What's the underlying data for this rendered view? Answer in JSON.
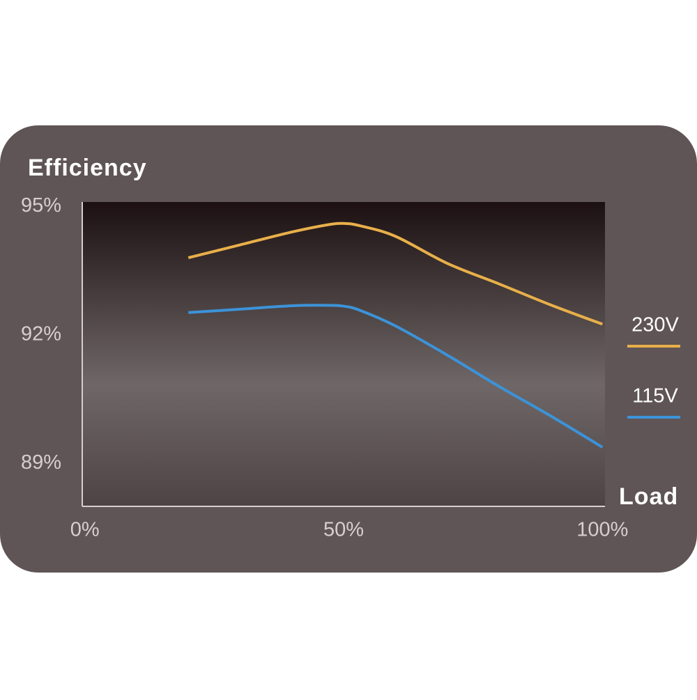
{
  "chart_data": {
    "type": "line",
    "y_label": "Efficiency",
    "x_label": "Load",
    "x": [
      20,
      30,
      40,
      47,
      50,
      53,
      60,
      70,
      80,
      90,
      100
    ],
    "series": [
      {
        "name": "230V",
        "color": "#e8b04a",
        "values": [
          93.8,
          94.1,
          94.4,
          94.57,
          94.6,
          94.55,
          94.3,
          93.67,
          93.19,
          92.7,
          92.25
        ]
      },
      {
        "name": "115V",
        "color": "#3c93d8",
        "values": [
          92.52,
          92.6,
          92.68,
          92.69,
          92.67,
          92.58,
          92.21,
          91.53,
          90.8,
          90.11,
          89.38
        ]
      }
    ],
    "xlim": [
      -0.5,
      100.5
    ],
    "ylim": [
      88,
      95.1
    ],
    "xticks": [
      {
        "value": 0,
        "label": "0%"
      },
      {
        "value": 50,
        "label": "50%"
      },
      {
        "value": 100,
        "label": "100%"
      }
    ],
    "yticks": [
      {
        "value": 89,
        "label": "89%"
      },
      {
        "value": 92,
        "label": "92%"
      },
      {
        "value": 95,
        "label": "95%"
      }
    ],
    "legend": "right",
    "grid": false
  }
}
